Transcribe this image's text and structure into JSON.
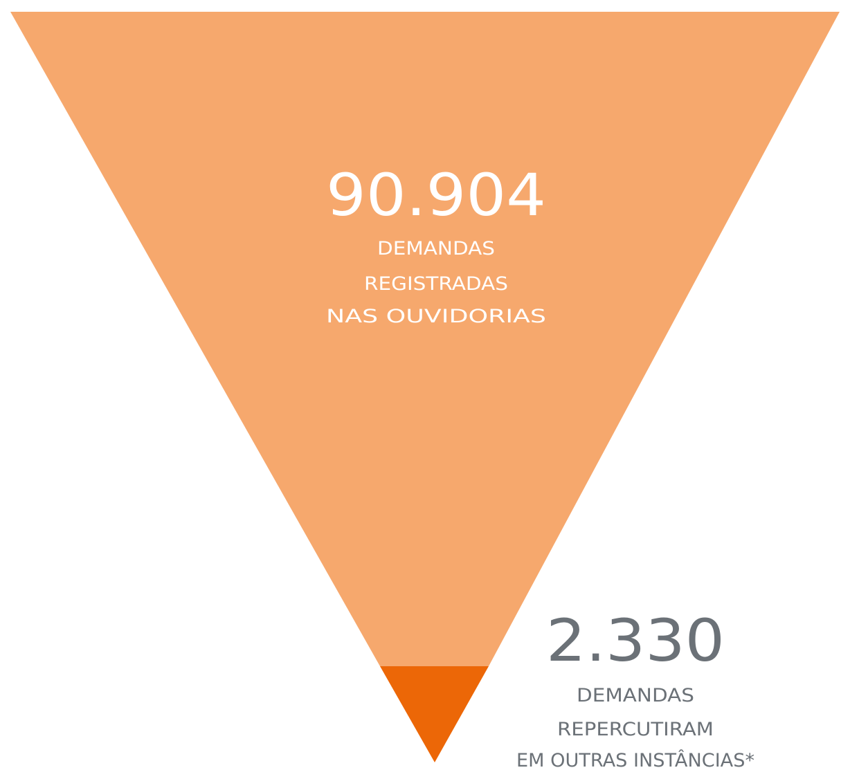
{
  "top": {
    "value": "90.904",
    "lines": [
      "DEMANDAS",
      "REGISTRADAS",
      "NAS OUVIDORIAS"
    ]
  },
  "bottom": {
    "value": "2.330",
    "lines": [
      "DEMANDAS",
      "REPERCUTIRAM",
      "EM OUTRAS INSTÂNCIAS*"
    ]
  }
}
